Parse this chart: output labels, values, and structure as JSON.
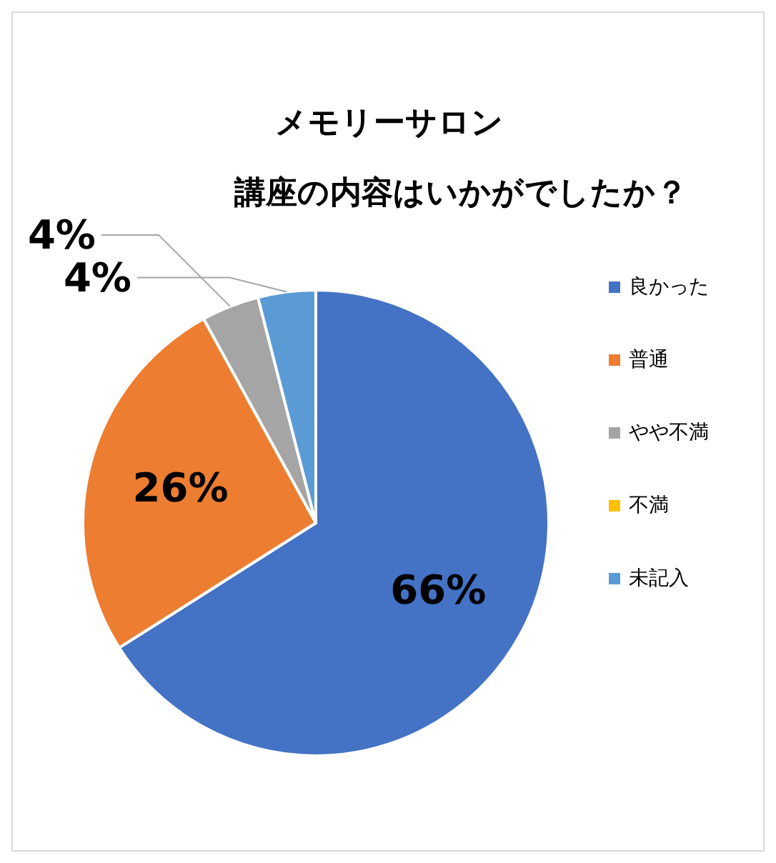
{
  "chart_data": {
    "type": "pie",
    "title": "メモリーサロン",
    "subtitle": "講座の内容はいかがでしたか？",
    "categories": [
      "良かった",
      "普通",
      "やや不満",
      "不満",
      "未記入"
    ],
    "values": [
      66,
      26,
      4,
      0,
      4
    ],
    "colors": [
      "#4472c4",
      "#ed7d31",
      "#a5a5a5",
      "#ffc000",
      "#5b9bd5"
    ],
    "value_labels": [
      "66%",
      "26%",
      "4%",
      null,
      "4%"
    ],
    "legend": "right"
  }
}
